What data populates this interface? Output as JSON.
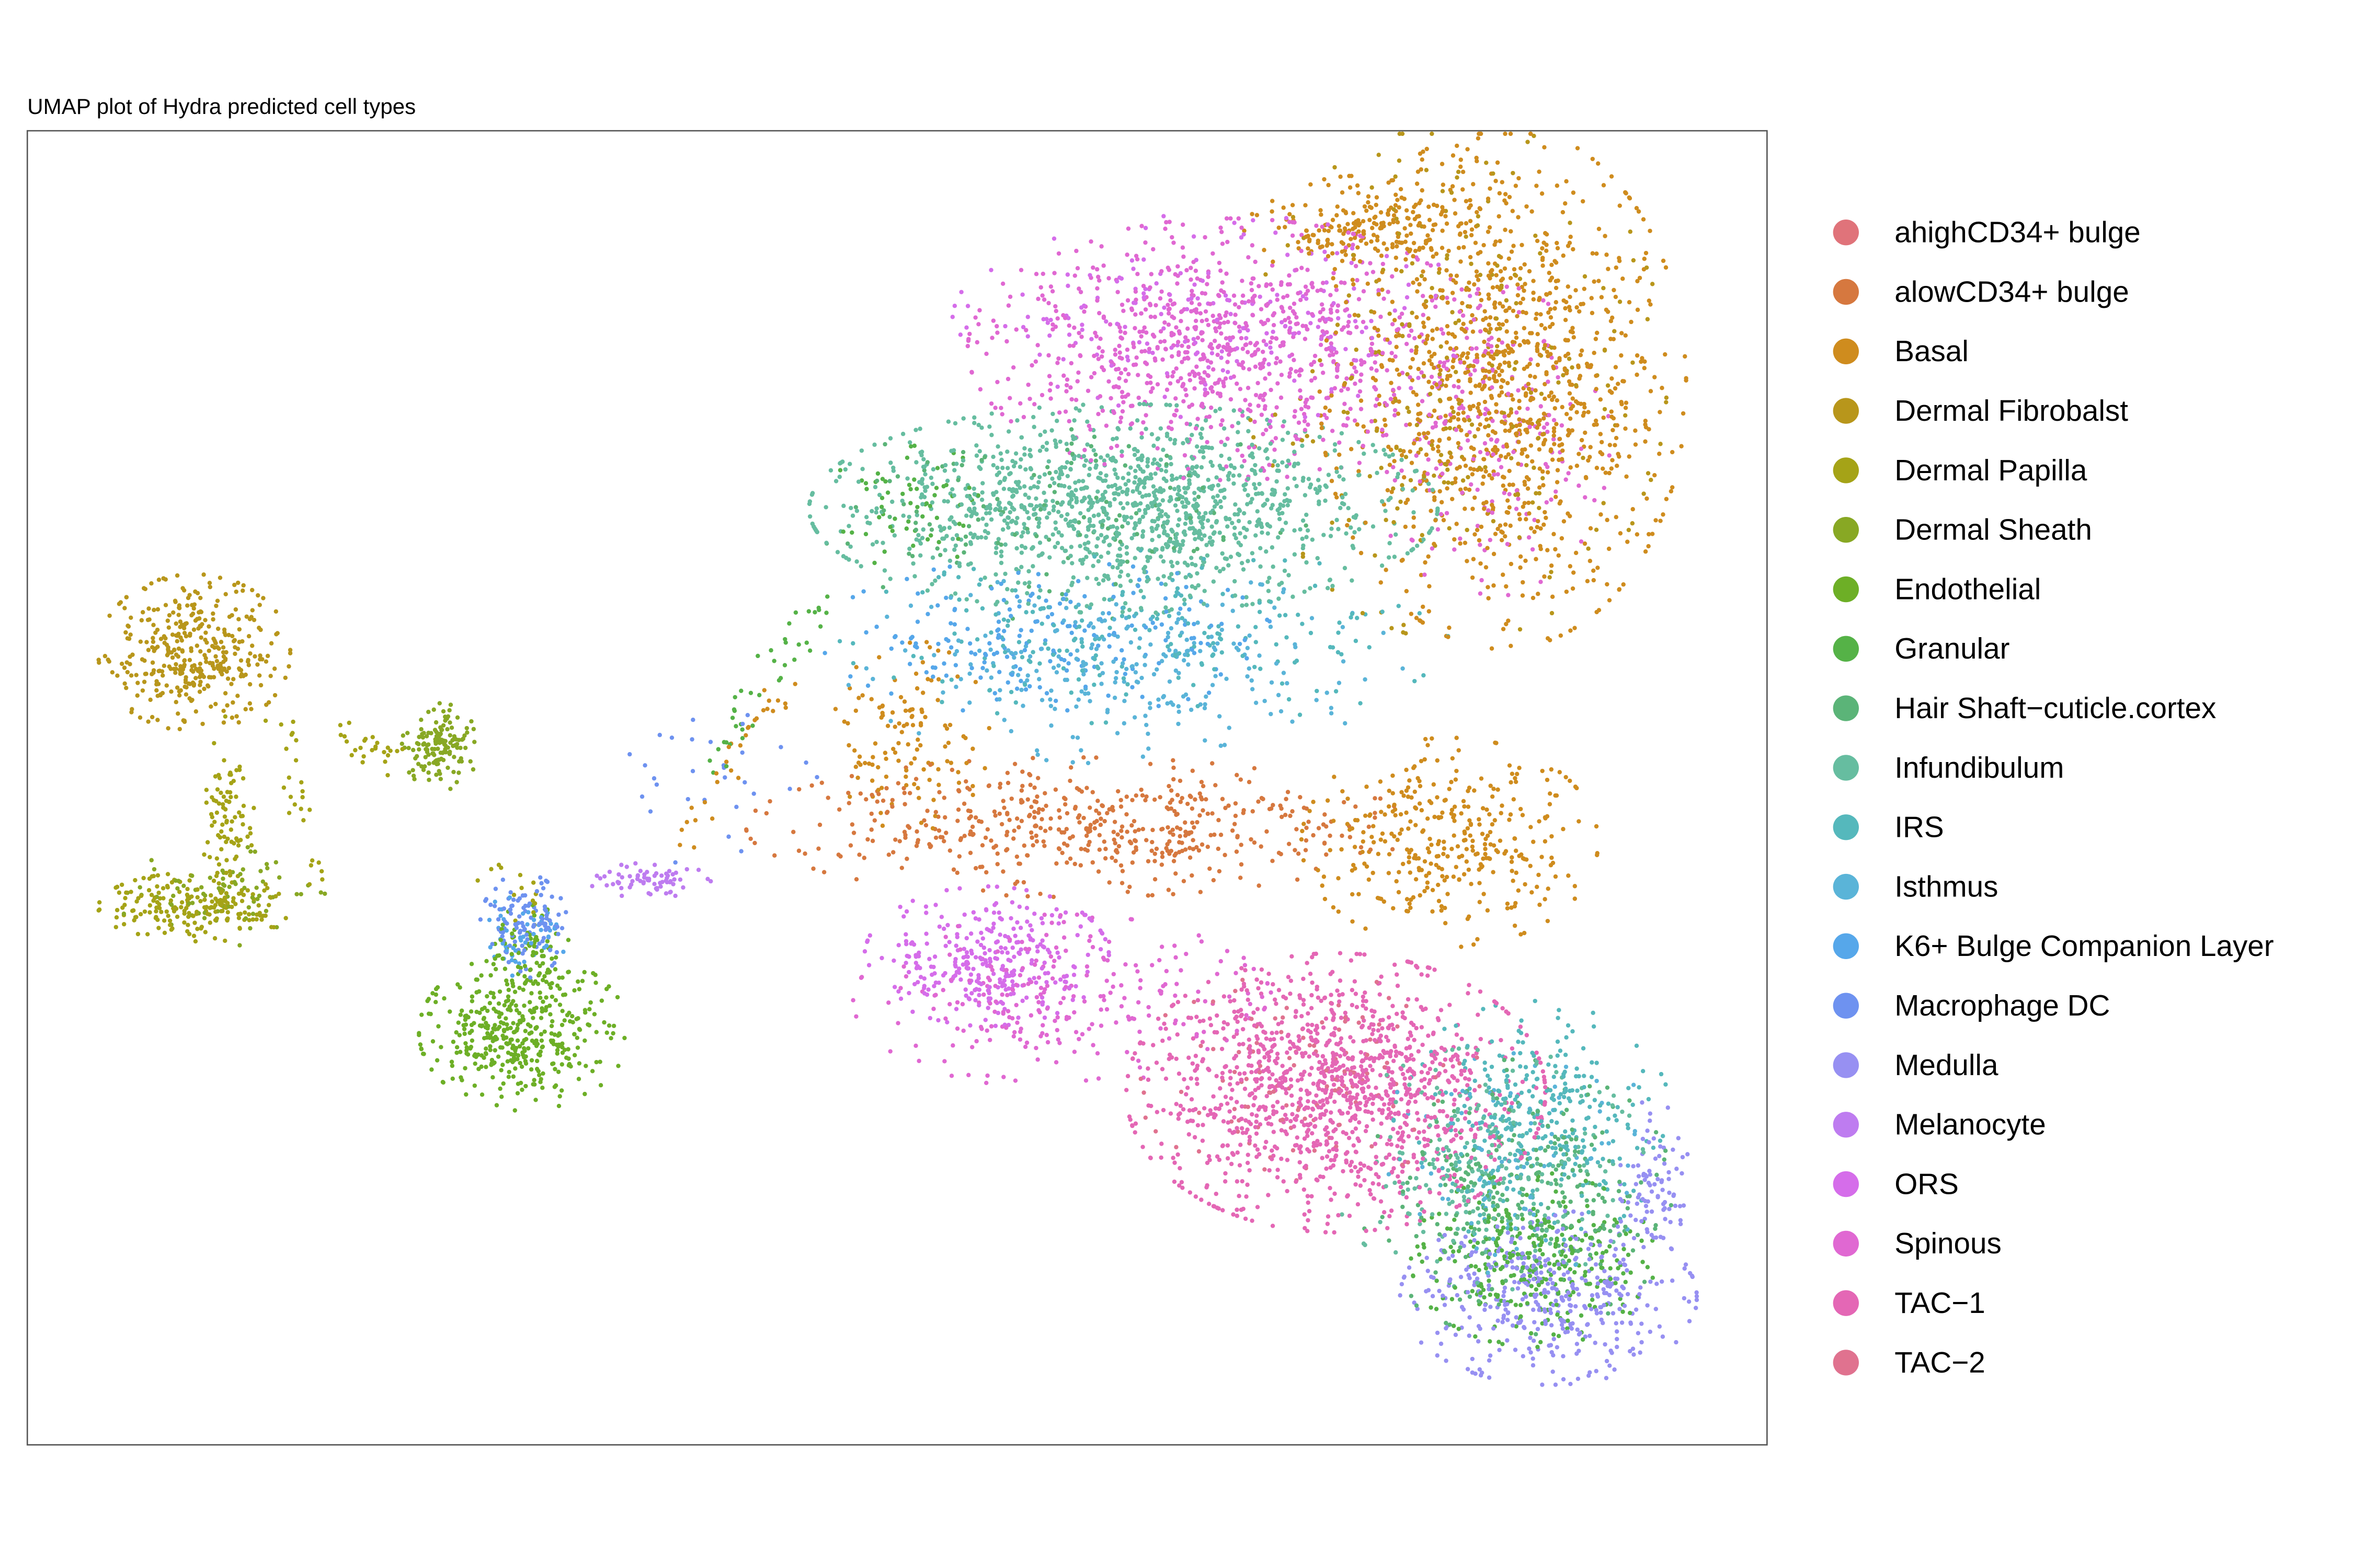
{
  "chart_data": {
    "type": "scatter",
    "title": "UMAP plot of Hydra predicted cell types",
    "xlabel": "",
    "ylabel": "",
    "grid": false,
    "panel_border": true,
    "axis_ticks": false,
    "legend_position": "right",
    "series": [
      {
        "name": "ahighCD34+ bulge",
        "color": "#E0737A",
        "clusters": []
      },
      {
        "name": "alowCD34+ bulge",
        "color": "#D6783F",
        "clusters": [
          {
            "cx": 710,
            "cy": 545,
            "rx": 190,
            "ry": 40,
            "n": 520
          }
        ]
      },
      {
        "name": "Basal",
        "color": "#CF8C1E",
        "clusters": [
          {
            "cx": 990,
            "cy": 255,
            "rx": 105,
            "ry": 150,
            "n": 1100
          },
          {
            "cx": 900,
            "cy": 150,
            "rx": 70,
            "ry": 30,
            "n": 200
          },
          {
            "cx": 955,
            "cy": 555,
            "rx": 85,
            "ry": 60,
            "n": 350
          },
          {
            "cx": 600,
            "cy": 485,
            "rx": 45,
            "ry": 55,
            "n": 120
          }
        ]
      },
      {
        "name": "Dermal Fibrobalst",
        "color": "#B8961B",
        "clusters": [
          {
            "cx": 128,
            "cy": 430,
            "rx": 55,
            "ry": 45,
            "n": 380
          },
          {
            "cx": 960,
            "cy": 250,
            "rx": 120,
            "ry": 150,
            "n": 250
          }
        ]
      },
      {
        "name": "Dermal Papilla",
        "color": "#A5A317",
        "clusters": [
          {
            "cx": 128,
            "cy": 598,
            "rx": 55,
            "ry": 20,
            "n": 200
          },
          {
            "cx": 150,
            "cy": 535,
            "rx": 15,
            "ry": 55,
            "n": 90
          }
        ]
      },
      {
        "name": "Dermal Sheath",
        "color": "#88A824",
        "clusters": [
          {
            "cx": 290,
            "cy": 492,
            "rx": 22,
            "ry": 25,
            "n": 140
          },
          {
            "cx": 145,
            "cy": 590,
            "rx": 60,
            "ry": 30,
            "n": 80
          }
        ]
      },
      {
        "name": "Endothelial",
        "color": "#6DAF26",
        "clusters": [
          {
            "cx": 345,
            "cy": 680,
            "rx": 60,
            "ry": 45,
            "n": 420
          },
          {
            "cx": 350,
            "cy": 625,
            "rx": 25,
            "ry": 25,
            "n": 60
          }
        ]
      },
      {
        "name": "Granular",
        "color": "#55B247",
        "clusters": [
          {
            "cx": 1010,
            "cy": 830,
            "rx": 70,
            "ry": 50,
            "n": 320
          },
          {
            "cx": 600,
            "cy": 330,
            "rx": 45,
            "ry": 40,
            "n": 60
          }
        ]
      },
      {
        "name": "Hair Shaft−cuticle.cortex",
        "color": "#5BB478",
        "clusters": [
          {
            "cx": 1000,
            "cy": 790,
            "rx": 90,
            "ry": 80,
            "n": 260
          },
          {
            "cx": 700,
            "cy": 340,
            "rx": 140,
            "ry": 60,
            "n": 120
          }
        ]
      },
      {
        "name": "Infundibulum",
        "color": "#66BDA0",
        "clusters": [
          {
            "cx": 740,
            "cy": 335,
            "rx": 180,
            "ry": 60,
            "n": 1300
          },
          {
            "cx": 980,
            "cy": 770,
            "rx": 90,
            "ry": 70,
            "n": 220
          }
        ]
      },
      {
        "name": "IRS",
        "color": "#55B8BC",
        "clusters": [
          {
            "cx": 1010,
            "cy": 740,
            "rx": 80,
            "ry": 70,
            "n": 320
          },
          {
            "cx": 760,
            "cy": 420,
            "rx": 180,
            "ry": 50,
            "n": 200
          }
        ]
      },
      {
        "name": "Isthmus",
        "color": "#5AB4D8",
        "clusters": [
          {
            "cx": 740,
            "cy": 440,
            "rx": 160,
            "ry": 55,
            "n": 260
          },
          {
            "cx": 1000,
            "cy": 760,
            "rx": 80,
            "ry": 70,
            "n": 80
          }
        ]
      },
      {
        "name": "K6+ Bulge Companion Layer",
        "color": "#56A7EA",
        "clusters": [
          {
            "cx": 690,
            "cy": 420,
            "rx": 130,
            "ry": 45,
            "n": 200
          },
          {
            "cx": 345,
            "cy": 615,
            "rx": 25,
            "ry": 25,
            "n": 50
          }
        ]
      },
      {
        "name": "Macrophage DC",
        "color": "#6E92F0",
        "clusters": [
          {
            "cx": 345,
            "cy": 610,
            "rx": 25,
            "ry": 30,
            "n": 110
          },
          {
            "cx": 470,
            "cy": 520,
            "rx": 60,
            "ry": 45,
            "n": 30
          }
        ]
      },
      {
        "name": "Medulla",
        "color": "#9790F2",
        "clusters": [
          {
            "cx": 1020,
            "cy": 855,
            "rx": 85,
            "ry": 50,
            "n": 420
          },
          {
            "cx": 1090,
            "cy": 780,
            "rx": 20,
            "ry": 50,
            "n": 80
          }
        ]
      },
      {
        "name": "Melanocyte",
        "color": "#BE7CF0",
        "clusters": [
          {
            "cx": 428,
            "cy": 580,
            "rx": 35,
            "ry": 10,
            "n": 70
          }
        ]
      },
      {
        "name": "ORS",
        "color": "#D56DEA",
        "clusters": [
          {
            "cx": 650,
            "cy": 630,
            "rx": 70,
            "ry": 40,
            "n": 320
          },
          {
            "cx": 800,
            "cy": 210,
            "rx": 150,
            "ry": 60,
            "n": 200
          }
        ]
      },
      {
        "name": "Spinous",
        "color": "#E068D2",
        "clusters": [
          {
            "cx": 810,
            "cy": 230,
            "rx": 150,
            "ry": 75,
            "n": 900
          },
          {
            "cx": 700,
            "cy": 660,
            "rx": 120,
            "ry": 50,
            "n": 250
          },
          {
            "cx": 980,
            "cy": 290,
            "rx": 70,
            "ry": 90,
            "n": 200
          }
        ]
      },
      {
        "name": "TAC−1",
        "color": "#E467B5",
        "clusters": [
          {
            "cx": 880,
            "cy": 720,
            "rx": 120,
            "ry": 80,
            "n": 1250
          }
        ]
      },
      {
        "name": "TAC−2",
        "color": "#E0728F",
        "clusters": [
          {
            "cx": 860,
            "cy": 710,
            "rx": 100,
            "ry": 60,
            "n": 120
          }
        ]
      }
    ],
    "bridges": [
      {
        "from": [
          540,
          400
        ],
        "to": [
          470,
          500
        ],
        "n": 40,
        "color": "#55B247"
      },
      {
        "from": [
          520,
          440
        ],
        "to": [
          450,
          560
        ],
        "n": 30,
        "color": "#CF8C1E"
      },
      {
        "from": [
          220,
          480
        ],
        "to": [
          260,
          500
        ],
        "n": 25,
        "color": "#A5A317"
      },
      {
        "from": [
          190,
          470
        ],
        "to": [
          210,
          590
        ],
        "n": 25,
        "color": "#A5A317"
      },
      {
        "from": [
          330,
          570
        ],
        "to": [
          350,
          600
        ],
        "n": 15,
        "color": "#A5A317"
      }
    ]
  }
}
